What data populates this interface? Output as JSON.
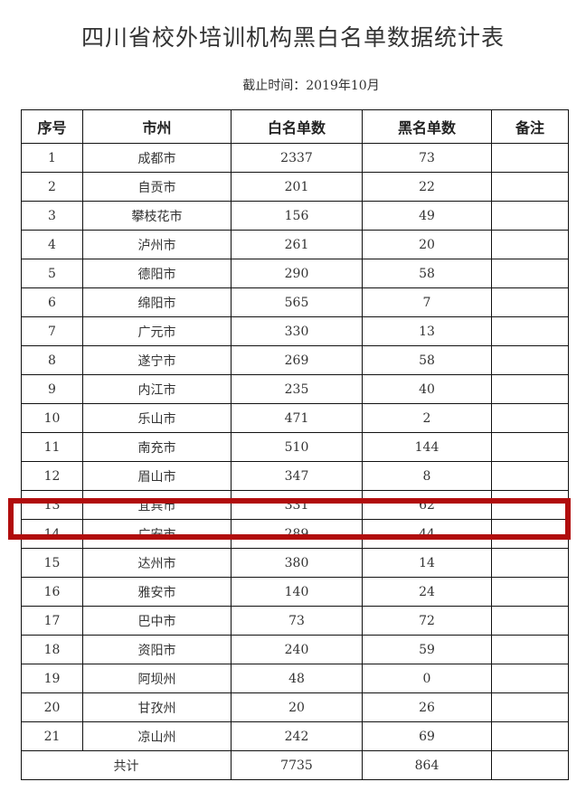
{
  "title": "四川省校外培训机构黑白名单数据统计表",
  "subtitle": "截止时间：2019年10月",
  "highlight_color": "#b10d0d",
  "highlighted_row": "13",
  "table": {
    "headers": [
      "序号",
      "市州",
      "白名单数",
      "黑名单数",
      "备注"
    ],
    "rows": [
      [
        "1",
        "成都市",
        "2337",
        "73",
        ""
      ],
      [
        "2",
        "自贡市",
        "201",
        "22",
        ""
      ],
      [
        "3",
        "攀枝花市",
        "156",
        "49",
        ""
      ],
      [
        "4",
        "泸州市",
        "261",
        "20",
        ""
      ],
      [
        "5",
        "德阳市",
        "290",
        "58",
        ""
      ],
      [
        "6",
        "绵阳市",
        "565",
        "7",
        ""
      ],
      [
        "7",
        "广元市",
        "330",
        "13",
        ""
      ],
      [
        "8",
        "遂宁市",
        "269",
        "58",
        ""
      ],
      [
        "9",
        "内江市",
        "235",
        "40",
        ""
      ],
      [
        "10",
        "乐山市",
        "471",
        "2",
        ""
      ],
      [
        "11",
        "南充市",
        "510",
        "144",
        ""
      ],
      [
        "12",
        "眉山市",
        "347",
        "8",
        ""
      ],
      [
        "13",
        "宜宾市",
        "331",
        "62",
        ""
      ],
      [
        "14",
        "广安市",
        "289",
        "44",
        ""
      ],
      [
        "15",
        "达州市",
        "380",
        "14",
        ""
      ],
      [
        "16",
        "雅安市",
        "140",
        "24",
        ""
      ],
      [
        "17",
        "巴中市",
        "73",
        "72",
        ""
      ],
      [
        "18",
        "资阳市",
        "240",
        "59",
        ""
      ],
      [
        "19",
        "阿坝州",
        "48",
        "0",
        ""
      ],
      [
        "20",
        "甘孜州",
        "20",
        "26",
        ""
      ],
      [
        "21",
        "凉山州",
        "242",
        "69",
        ""
      ]
    ],
    "total": {
      "label": "共计",
      "white": "7735",
      "black": "864",
      "note": ""
    }
  }
}
